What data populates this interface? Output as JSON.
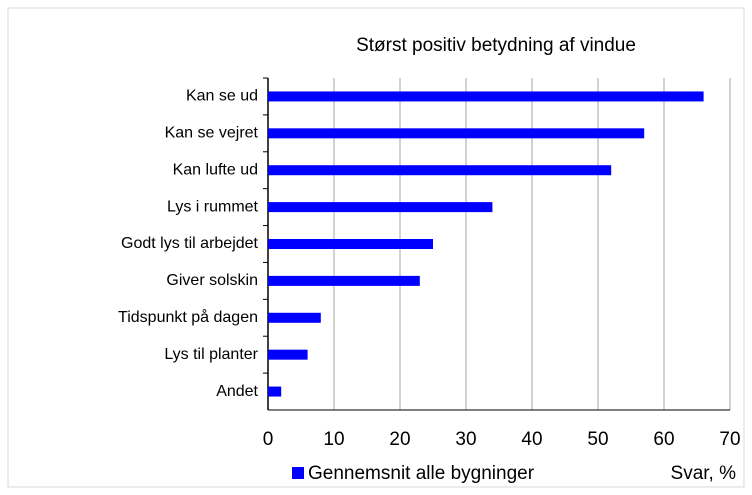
{
  "chart_data": {
    "type": "hbar",
    "title": "Størst positiv betydning af vindue",
    "categories": [
      "Kan se ud",
      "Kan se vejret",
      "Kan lufte ud",
      "Lys i rummet",
      "Godt lys til arbejdet",
      "Giver solskin",
      "Tidspunkt på dagen",
      "Lys til planter",
      "Andet"
    ],
    "series": [
      {
        "name": "Gennemsnit alle bygninger",
        "color": "#0000ff",
        "values": [
          66,
          57,
          52,
          34,
          25,
          23,
          8,
          6,
          2
        ]
      }
    ],
    "xlabel": "Svar, %",
    "xlim": [
      0,
      70
    ],
    "xticks": [
      0,
      10,
      20,
      30,
      40,
      50,
      60,
      70
    ],
    "grid": true,
    "legend": "bottom"
  }
}
